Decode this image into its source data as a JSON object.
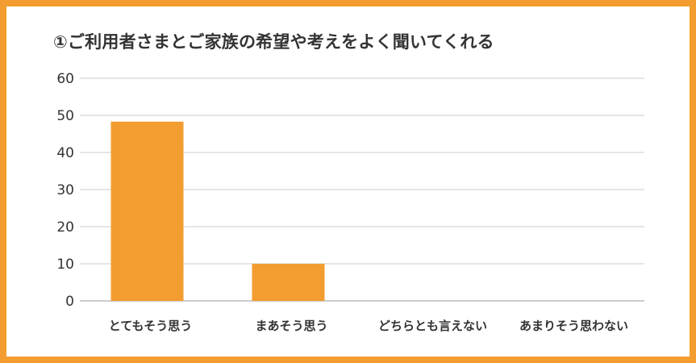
{
  "chart_data": {
    "type": "bar",
    "title": "①ご利用者さまとご家族の希望や考えをよく聞いてくれる",
    "categories": [
      "とてもそう思う",
      "まあそう思う",
      "どちらとも言えない",
      "あまりそう思わない"
    ],
    "values": [
      48.3,
      10.0,
      0,
      0
    ],
    "ylim": [
      0,
      60
    ],
    "yticks": [
      "0",
      "10",
      "20",
      "30",
      "40",
      "50",
      "60"
    ],
    "grid": true,
    "bar_color": "#F39C2F",
    "frame_color": "#F39C2F"
  }
}
